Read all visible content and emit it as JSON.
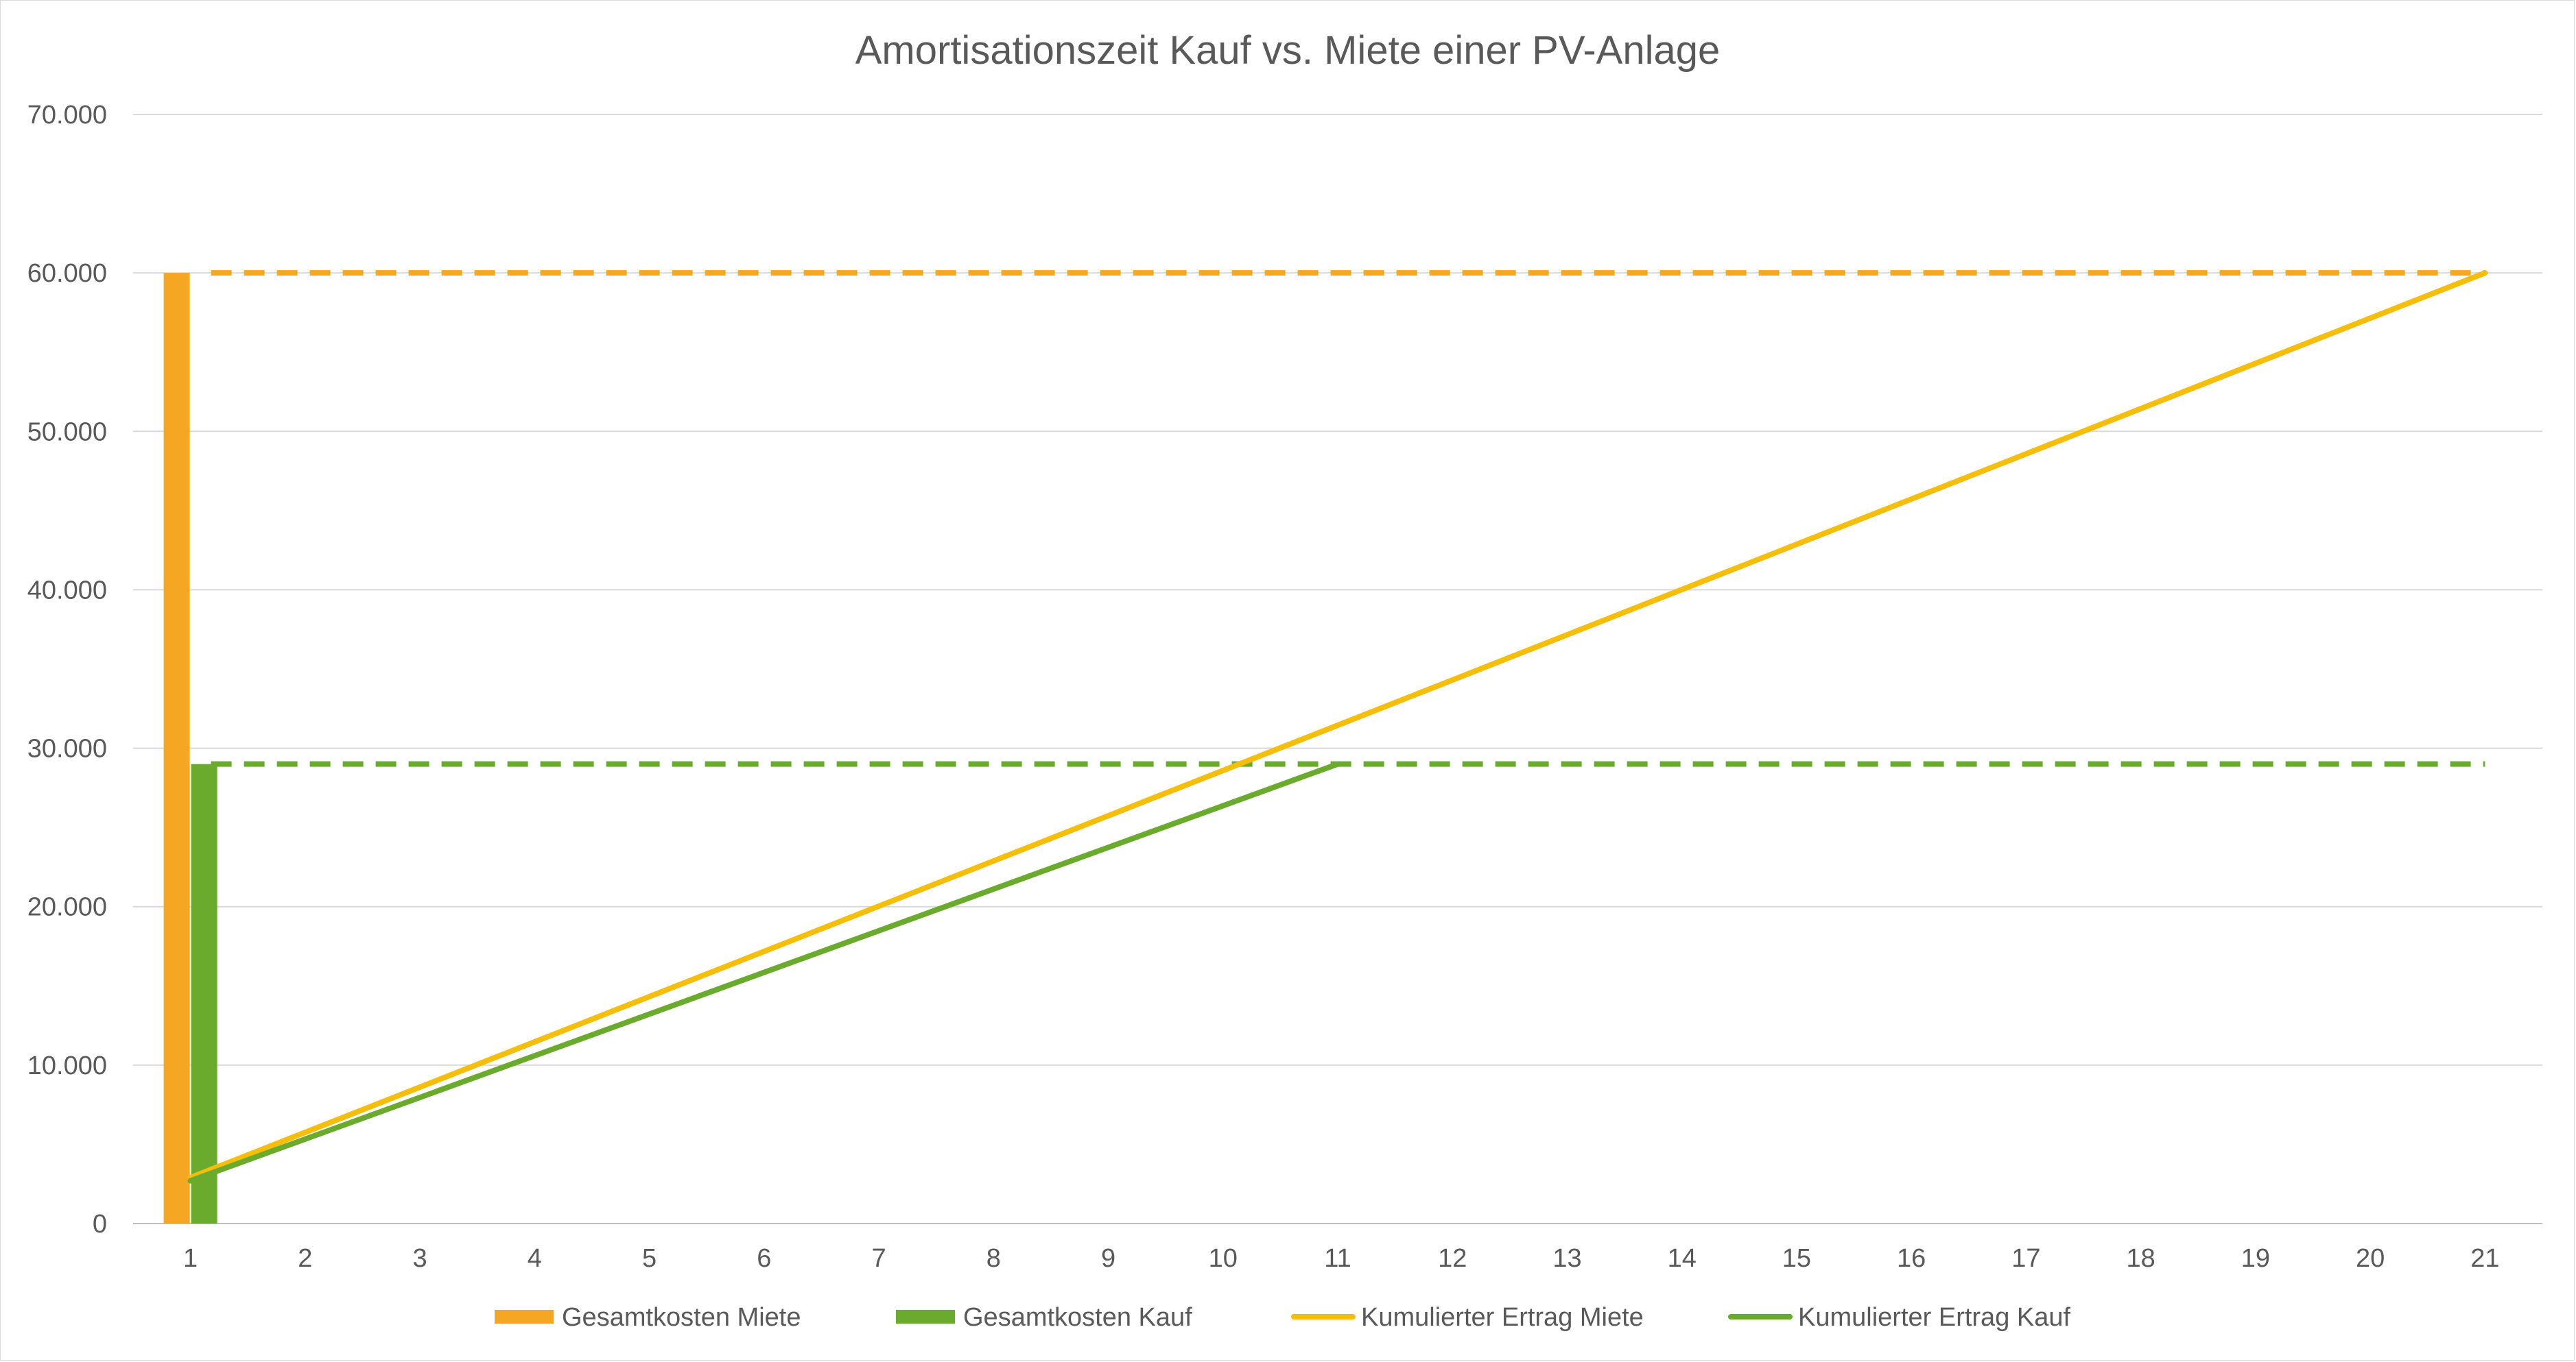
{
  "chart_data": {
    "type": "bar",
    "title": "Amortisationszeit Kauf vs. Miete einer PV-Anlage",
    "xlabel": "",
    "ylabel": "",
    "categories": [
      "1",
      "2",
      "3",
      "4",
      "5",
      "6",
      "7",
      "8",
      "9",
      "10",
      "11",
      "12",
      "13",
      "14",
      "15",
      "16",
      "17",
      "18",
      "19",
      "20",
      "21"
    ],
    "ylim": [
      0,
      70000
    ],
    "y_ticks": [
      0,
      10000,
      20000,
      30000,
      40000,
      50000,
      60000,
      70000
    ],
    "y_tick_labels": [
      "0",
      "10.000",
      "20.000",
      "30.000",
      "40.000",
      "50.000",
      "60.000",
      "70.000"
    ],
    "grid": true,
    "legend_position": "bottom",
    "bar_series": [
      {
        "name": "Gesamtkosten Miete",
        "color": "#F5A623",
        "category": "1",
        "value": 60000
      },
      {
        "name": "Gesamtkosten Kauf",
        "color": "#6AAB2E",
        "category": "1",
        "value": 29000
      }
    ],
    "reference_lines": [
      {
        "color": "#F5A623",
        "value": 60000,
        "style": "dashed",
        "from": "1",
        "to": "21"
      },
      {
        "color": "#6AAB2E",
        "value": 29000,
        "style": "dashed",
        "from": "1",
        "to": "21"
      }
    ],
    "line_series": [
      {
        "name": "Kumulierter Ertrag Miete",
        "color": "#F5BE0B",
        "x": [
          1,
          21
        ],
        "values": [
          2900,
          60000
        ]
      },
      {
        "name": "Kumulierter Ertrag Kauf",
        "color": "#6AAB2E",
        "x": [
          1,
          11
        ],
        "values": [
          2700,
          29000
        ]
      }
    ],
    "legend": [
      {
        "label": "Gesamtkosten Miete",
        "color": "#F5A623",
        "kind": "bar"
      },
      {
        "label": "Gesamtkosten Kauf",
        "color": "#6AAB2E",
        "kind": "bar"
      },
      {
        "label": "Kumulierter Ertrag Miete",
        "color": "#F5BE0B",
        "kind": "line"
      },
      {
        "label": "Kumulierter Ertrag Kauf",
        "color": "#6AAB2E",
        "kind": "line"
      }
    ],
    "colors": {
      "grid": "#d9d9d9",
      "axis": "#bfbfbf",
      "text": "#595959"
    }
  }
}
